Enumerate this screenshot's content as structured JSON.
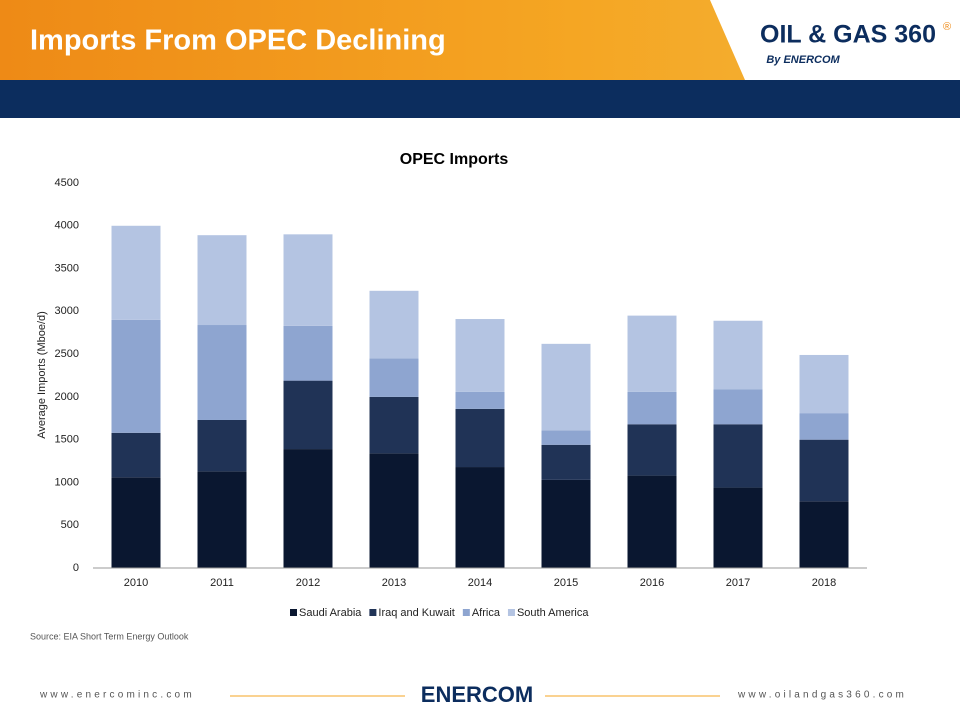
{
  "header": {
    "title": "Imports From OPEC Declining",
    "logo_main": "OIL & GAS 360",
    "logo_mark": "®",
    "logo_sub": "By ENERCOM"
  },
  "chart_data": {
    "type": "stacked-bar",
    "title": "OPEC Imports",
    "y_label": "Average Imports (Mboe/d)",
    "categories": [
      "2010",
      "2011",
      "2012",
      "2013",
      "2014",
      "2015",
      "2016",
      "2017",
      "2018"
    ],
    "series": [
      {
        "name": "Saudi Arabia",
        "color": "#0a1730",
        "values": [
          1060,
          1130,
          1390,
          1340,
          1180,
          1030,
          1080,
          940,
          780
        ]
      },
      {
        "name": "Iraq and Kuwait",
        "color": "#203356",
        "values": [
          520,
          600,
          800,
          660,
          680,
          410,
          600,
          740,
          720
        ]
      },
      {
        "name": "Africa",
        "color": "#8ea5d0",
        "values": [
          1320,
          1110,
          640,
          450,
          200,
          170,
          380,
          410,
          310
        ]
      },
      {
        "name": "South America",
        "color": "#b4c4e2",
        "values": [
          1100,
          1050,
          1070,
          790,
          850,
          1010,
          890,
          800,
          680
        ]
      }
    ],
    "ylim": [
      0,
      4500
    ],
    "yticks": [
      0,
      500,
      1000,
      1500,
      2000,
      2500,
      3000,
      3500,
      4000,
      4500
    ],
    "legend": "bottom"
  },
  "source": "Source: EIA Short Term Energy Outlook",
  "footer": {
    "left_url": "www.enercominc.com",
    "brand": "ENERCOM",
    "right_url": "www.oilandgas360.com"
  }
}
